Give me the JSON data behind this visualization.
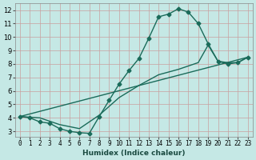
{
  "xlabel": "Humidex (Indice chaleur)",
  "bg_color": "#c5e8e5",
  "grid_color": "#c8a0a0",
  "line_color": "#1a6b5a",
  "markersize": 2.5,
  "linewidth": 1.0,
  "xlim": [
    -0.5,
    23.5
  ],
  "ylim": [
    2.6,
    12.5
  ],
  "xticks": [
    0,
    1,
    2,
    3,
    4,
    5,
    6,
    7,
    8,
    9,
    10,
    11,
    12,
    13,
    14,
    15,
    16,
    17,
    18,
    19,
    20,
    21,
    22,
    23
  ],
  "yticks": [
    3,
    4,
    5,
    6,
    7,
    8,
    9,
    10,
    11,
    12
  ],
  "curve1_x": [
    0,
    1,
    2,
    3,
    4,
    5,
    6,
    7,
    8,
    9,
    10,
    11,
    12,
    13,
    14,
    15,
    16,
    17,
    18,
    19,
    20,
    21,
    22,
    23
  ],
  "curve1_y": [
    4.1,
    4.0,
    3.7,
    3.6,
    3.2,
    3.0,
    2.9,
    2.85,
    4.1,
    5.3,
    6.5,
    7.5,
    8.4,
    9.9,
    11.5,
    11.7,
    12.1,
    11.85,
    11.0,
    9.5,
    8.2,
    8.0,
    8.1,
    8.5
  ],
  "curve2_x": [
    0,
    23
  ],
  "curve2_y": [
    4.1,
    8.5
  ],
  "curve3_x": [
    0,
    2,
    4,
    6,
    8,
    10,
    12,
    14,
    16,
    18,
    19,
    20,
    21,
    22,
    23
  ],
  "curve3_y": [
    4.1,
    4.0,
    3.5,
    3.2,
    4.2,
    5.5,
    6.4,
    7.2,
    7.6,
    8.1,
    9.4,
    8.2,
    8.1,
    8.1,
    8.5
  ]
}
